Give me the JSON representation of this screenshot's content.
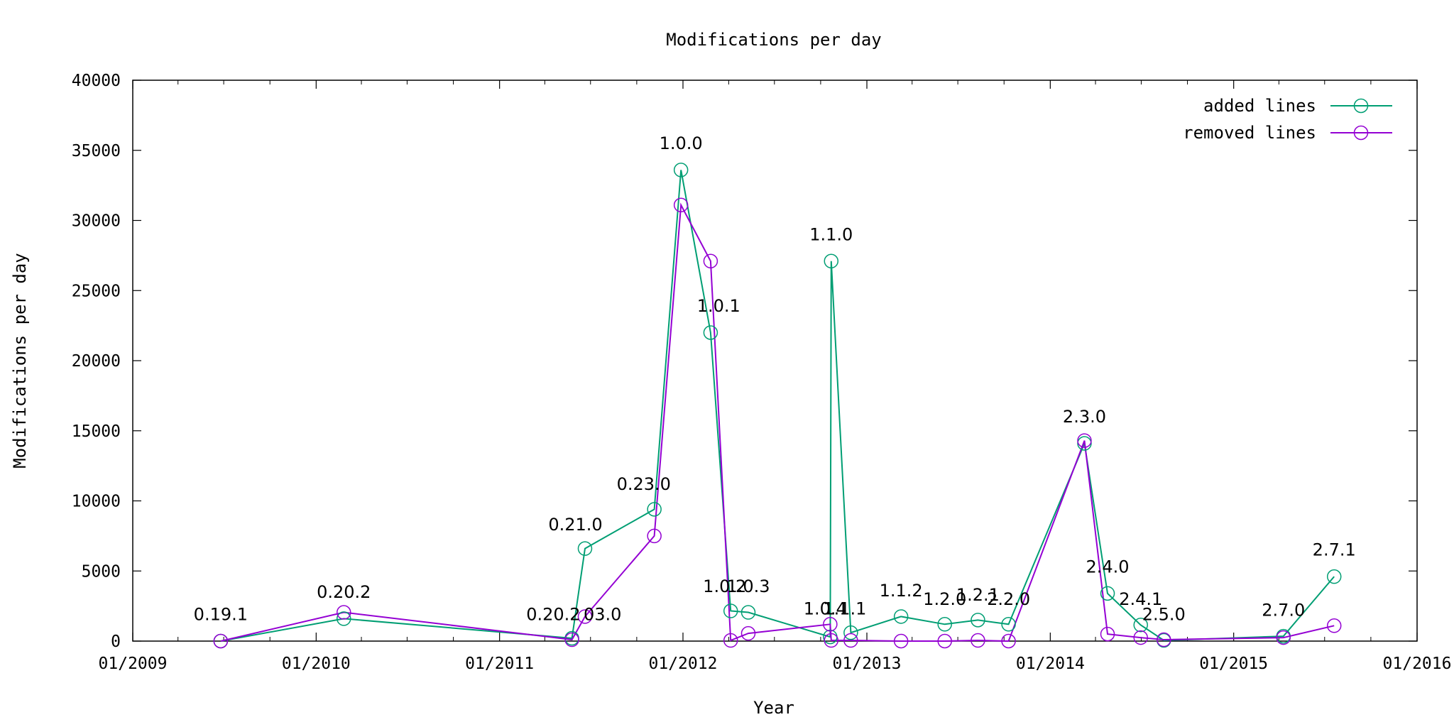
{
  "chart_data": {
    "type": "line",
    "title": "Modifications per day",
    "xlabel": "Year",
    "ylabel": "Modifications per day",
    "xlim": [
      "2009-01-01",
      "2016-01-01"
    ],
    "ylim": [
      0,
      40000
    ],
    "x_ticks": [
      "01/2009",
      "01/2010",
      "01/2011",
      "01/2012",
      "01/2013",
      "01/2014",
      "01/2015",
      "01/2016"
    ],
    "y_ticks": [
      "0",
      "5000",
      "10000",
      "15000",
      "20000",
      "25000",
      "30000",
      "35000",
      "40000"
    ],
    "legend_position": "top-right",
    "grid": false,
    "series": [
      {
        "name": "added lines",
        "color": "#009e73",
        "points": [
          {
            "x": "2009-06-25",
            "y": 0
          },
          {
            "x": "2010-02-25",
            "y": 1600
          },
          {
            "x": "2011-05-25",
            "y": 200
          },
          {
            "x": "2011-06-20",
            "y": 6600
          },
          {
            "x": "2011-11-05",
            "y": 9400
          },
          {
            "x": "2011-12-28",
            "y": 33600
          },
          {
            "x": "2012-02-25",
            "y": 22000
          },
          {
            "x": "2012-04-05",
            "y": 2150
          },
          {
            "x": "2012-05-10",
            "y": 2050
          },
          {
            "x": "2012-10-20",
            "y": 300
          },
          {
            "x": "2012-10-22",
            "y": 27100
          },
          {
            "x": "2012-11-30",
            "y": 600
          },
          {
            "x": "2013-03-10",
            "y": 1750
          },
          {
            "x": "2013-06-05",
            "y": 1200
          },
          {
            "x": "2013-08-10",
            "y": 1500
          },
          {
            "x": "2013-10-10",
            "y": 1200
          },
          {
            "x": "2014-03-10",
            "y": 14100
          },
          {
            "x": "2014-04-25",
            "y": 3400
          },
          {
            "x": "2014-06-30",
            "y": 1150
          },
          {
            "x": "2014-08-15",
            "y": 50
          },
          {
            "x": "2015-04-10",
            "y": 350
          },
          {
            "x": "2015-07-20",
            "y": 4600
          }
        ]
      },
      {
        "name": "removed lines",
        "color": "#9400d3",
        "points": [
          {
            "x": "2009-06-25",
            "y": 0
          },
          {
            "x": "2010-02-25",
            "y": 2050
          },
          {
            "x": "2011-05-25",
            "y": 100
          },
          {
            "x": "2011-06-20",
            "y": 1750
          },
          {
            "x": "2011-11-05",
            "y": 7500
          },
          {
            "x": "2011-12-28",
            "y": 31100
          },
          {
            "x": "2012-02-25",
            "y": 27100
          },
          {
            "x": "2012-04-05",
            "y": 50
          },
          {
            "x": "2012-05-10",
            "y": 550
          },
          {
            "x": "2012-10-20",
            "y": 1200
          },
          {
            "x": "2012-10-22",
            "y": 50
          },
          {
            "x": "2012-11-30",
            "y": 50
          },
          {
            "x": "2013-03-10",
            "y": 0
          },
          {
            "x": "2013-06-05",
            "y": 0
          },
          {
            "x": "2013-08-10",
            "y": 50
          },
          {
            "x": "2013-10-10",
            "y": 0
          },
          {
            "x": "2014-03-10",
            "y": 14300
          },
          {
            "x": "2014-04-25",
            "y": 500
          },
          {
            "x": "2014-06-30",
            "y": 250
          },
          {
            "x": "2014-08-15",
            "y": 100
          },
          {
            "x": "2015-04-10",
            "y": 250
          },
          {
            "x": "2015-07-20",
            "y": 1100
          }
        ]
      }
    ],
    "annotations": [
      {
        "text": "0.19.1",
        "x": "2009-06-25",
        "y": 1900
      },
      {
        "text": "0.20.2",
        "x": "2010-02-25",
        "y": 3500
      },
      {
        "text": "0.20.2",
        "x": "2011-04-18",
        "y": 1900
      },
      {
        "text": "03.0",
        "x": "2011-07-25",
        "y": 1900
      },
      {
        "text": "0.21.0",
        "x": "2011-06-01",
        "y": 8300
      },
      {
        "text": "0.23.0",
        "x": "2011-10-15",
        "y": 11200
      },
      {
        "text": "1.0.0",
        "x": "2011-12-28",
        "y": 35500
      },
      {
        "text": "1.0.1",
        "x": "2012-03-12",
        "y": 23900
      },
      {
        "text": "1.0.2",
        "x": "2012-03-24",
        "y": 3900
      },
      {
        "text": "1.0.3",
        "x": "2012-05-10",
        "y": 3900
      },
      {
        "text": "1.0.4",
        "x": "2012-10-10",
        "y": 2300
      },
      {
        "text": "1.1.1",
        "x": "2012-11-18",
        "y": 2300
      },
      {
        "text": "1.1.0",
        "x": "2012-10-22",
        "y": 29000
      },
      {
        "text": "1.1.2",
        "x": "2013-03-10",
        "y": 3600
      },
      {
        "text": "1.2.0",
        "x": "2013-06-05",
        "y": 3000
      },
      {
        "text": "1.2.1",
        "x": "2013-08-10",
        "y": 3300
      },
      {
        "text": "2.2.0",
        "x": "2013-10-10",
        "y": 3000
      },
      {
        "text": "2.3.0",
        "x": "2014-03-10",
        "y": 16000
      },
      {
        "text": "2.4.0",
        "x": "2014-04-25",
        "y": 5300
      },
      {
        "text": "2.4.1",
        "x": "2014-06-30",
        "y": 3000
      },
      {
        "text": "2.5.0",
        "x": "2014-08-15",
        "y": 1900
      },
      {
        "text": "2.7.0",
        "x": "2015-04-10",
        "y": 2200
      },
      {
        "text": "2.7.1",
        "x": "2015-07-20",
        "y": 6500
      }
    ]
  }
}
